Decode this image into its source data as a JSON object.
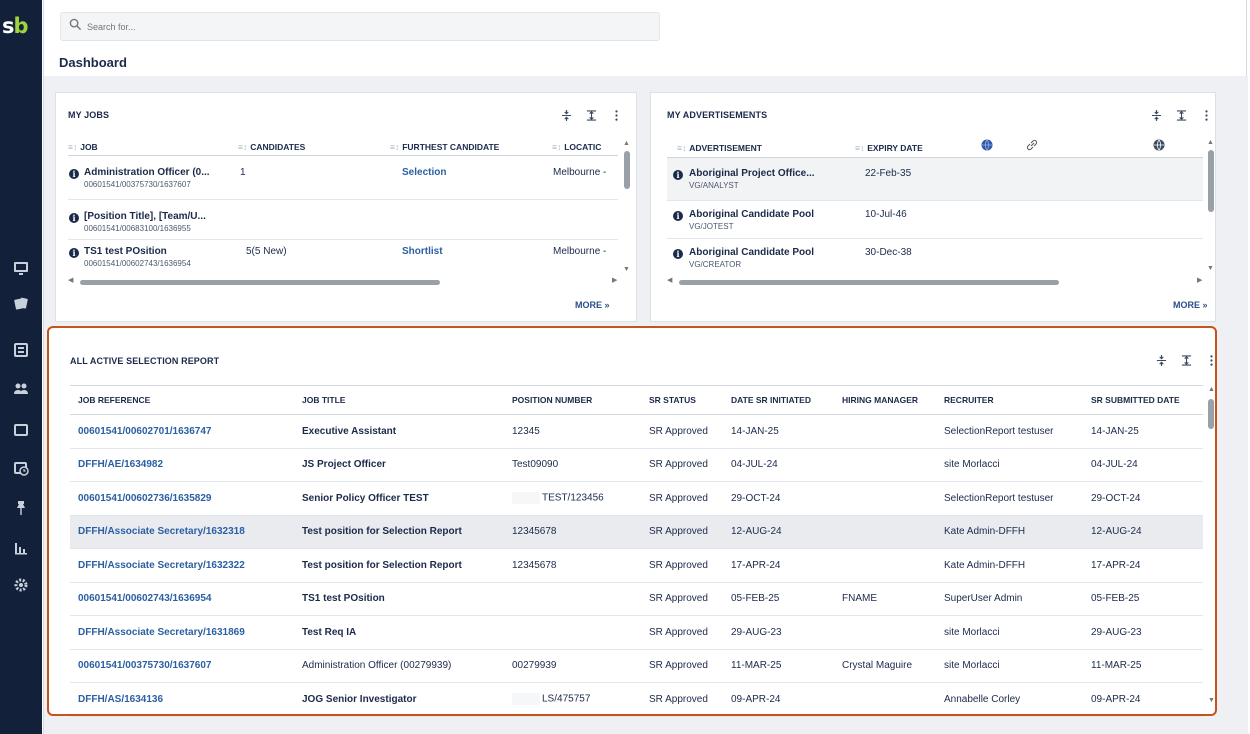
{
  "app": {
    "logo_text_1": "s",
    "logo_text_2": "b"
  },
  "sidebar": {
    "icons": [
      "monitor-icon",
      "cards-icon",
      "newspaper-icon",
      "people-icon",
      "folders-icon",
      "calendar-clock-icon",
      "pin-icon",
      "bar-chart-icon",
      "gear-icon"
    ]
  },
  "search": {
    "placeholder": "Search for..."
  },
  "page": {
    "title": "Dashboard"
  },
  "my_jobs": {
    "title": "MY JOBS",
    "columns": [
      "JOB",
      "CANDIDATES",
      "FURTHEST CANDIDATE",
      "LOCATIC"
    ],
    "rows": [
      {
        "job": "Administration Officer (0...",
        "ref": "00601541/00375730/1637607",
        "candidates": "1",
        "furthest": "Selection",
        "location": "Melbourne -"
      },
      {
        "job": "[Position Title], [Team/U...",
        "ref": "00601541/00683100/1636955",
        "candidates": "",
        "furthest": "",
        "location": ""
      },
      {
        "job": "TS1 test POsition",
        "ref": "00601541/00602743/1636954",
        "candidates": "5(5 New)",
        "furthest": "Shortlist",
        "location": "Melbourne -"
      }
    ],
    "more": "MORE »"
  },
  "my_ads": {
    "title": "MY ADVERTISEMENTS",
    "columns": [
      "ADVERTISEMENT",
      "EXPIRY DATE"
    ],
    "rows": [
      {
        "ad": "Aboriginal Project Office...",
        "sub": "VG/ANALYST",
        "expiry": "22-Feb-35"
      },
      {
        "ad": "Aboriginal Candidate Pool",
        "sub": "VG/JOTEST",
        "expiry": "10-Jul-46"
      },
      {
        "ad": "Aboriginal Candidate Pool",
        "sub": "VG/CREATOR",
        "expiry": "30-Dec-38"
      }
    ],
    "more": "MORE »"
  },
  "report": {
    "title": "ALL ACTIVE SELECTION REPORT",
    "columns": [
      "JOB REFERENCE",
      "JOB TITLE",
      "POSITION NUMBER",
      "SR STATUS",
      "DATE SR INITIATED",
      "HIRING MANAGER",
      "RECRUITER",
      "SR SUBMITTED DATE"
    ],
    "rows": [
      [
        "00601541/00602701/1636747",
        "Executive Assistant",
        "12345",
        "SR Approved",
        "14-JAN-25",
        "",
        "SelectionReport testuser",
        "14-JAN-25"
      ],
      [
        "DFFH/AE/1634982",
        "JS Project Officer",
        "Test09090",
        "SR Approved",
        "04-JUL-24",
        "",
        "site Morlacci",
        "04-JUL-24"
      ],
      [
        "00601541/00602736/1635829",
        "Senior Policy Officer TEST",
        "TEST/123456",
        "SR Approved",
        "29-OCT-24",
        "",
        "SelectionReport testuser",
        "29-OCT-24"
      ],
      [
        "DFFH/Associate Secretary/1632318",
        "Test position for Selection Report",
        "12345678",
        "SR Approved",
        "12-AUG-24",
        "",
        "Kate Admin-DFFH",
        "12-AUG-24"
      ],
      [
        "DFFH/Associate Secretary/1632322",
        "Test position for Selection Report",
        "12345678",
        "SR Approved",
        "17-APR-24",
        "",
        "Kate Admin-DFFH",
        "17-APR-24"
      ],
      [
        "00601541/00602743/1636954",
        "TS1 test POsition",
        "",
        "SR Approved",
        "05-FEB-25",
        "FNAME",
        "SuperUser Admin",
        "05-FEB-25"
      ],
      [
        "DFFH/Associate Secretary/1631869",
        "Test Req IA",
        "",
        "SR Approved",
        "29-AUG-23",
        "",
        "site Morlacci",
        "29-AUG-23"
      ],
      [
        "00601541/00375730/1637607",
        "Administration Officer (00279939)",
        "00279939",
        "SR Approved",
        "11-MAR-25",
        "Crystal Maguire",
        "site Morlacci",
        "11-MAR-25"
      ],
      [
        "DFFH/AS/1634136",
        "JOG Senior Investigator",
        "LS/475757",
        "SR Approved",
        "09-APR-24",
        "",
        "Annabelle Corley",
        "09-APR-24"
      ]
    ]
  }
}
